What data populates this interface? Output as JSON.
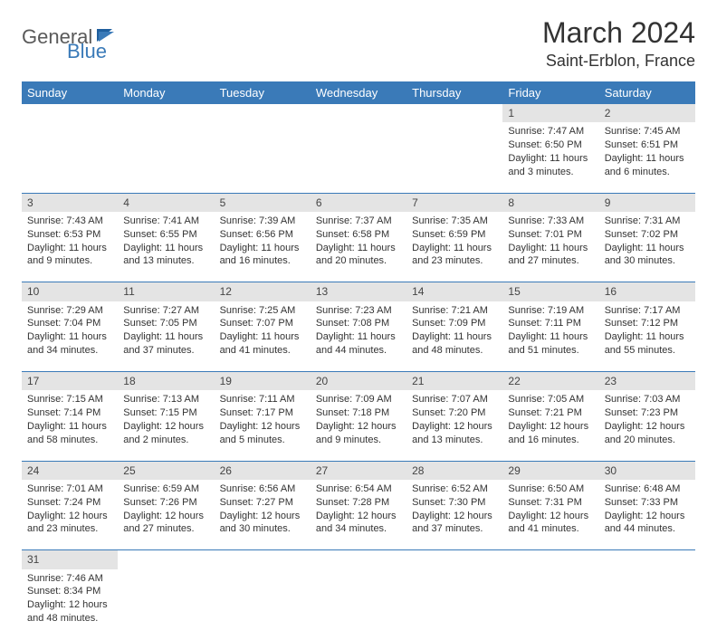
{
  "brand": {
    "part1": "General",
    "part2": "Blue"
  },
  "title": "March 2024",
  "location": "Saint-Erblon, France",
  "colors": {
    "header_bg": "#3a7ab8",
    "header_text": "#ffffff",
    "daynum_bg": "#e4e4e4",
    "row_border": "#3a7ab8",
    "text": "#333333",
    "page_bg": "#ffffff"
  },
  "weekdays": [
    "Sunday",
    "Monday",
    "Tuesday",
    "Wednesday",
    "Thursday",
    "Friday",
    "Saturday"
  ],
  "weeks": [
    [
      null,
      null,
      null,
      null,
      null,
      {
        "n": "1",
        "sr": "Sunrise: 7:47 AM",
        "ss": "Sunset: 6:50 PM",
        "d1": "Daylight: 11 hours",
        "d2": "and 3 minutes."
      },
      {
        "n": "2",
        "sr": "Sunrise: 7:45 AM",
        "ss": "Sunset: 6:51 PM",
        "d1": "Daylight: 11 hours",
        "d2": "and 6 minutes."
      }
    ],
    [
      {
        "n": "3",
        "sr": "Sunrise: 7:43 AM",
        "ss": "Sunset: 6:53 PM",
        "d1": "Daylight: 11 hours",
        "d2": "and 9 minutes."
      },
      {
        "n": "4",
        "sr": "Sunrise: 7:41 AM",
        "ss": "Sunset: 6:55 PM",
        "d1": "Daylight: 11 hours",
        "d2": "and 13 minutes."
      },
      {
        "n": "5",
        "sr": "Sunrise: 7:39 AM",
        "ss": "Sunset: 6:56 PM",
        "d1": "Daylight: 11 hours",
        "d2": "and 16 minutes."
      },
      {
        "n": "6",
        "sr": "Sunrise: 7:37 AM",
        "ss": "Sunset: 6:58 PM",
        "d1": "Daylight: 11 hours",
        "d2": "and 20 minutes."
      },
      {
        "n": "7",
        "sr": "Sunrise: 7:35 AM",
        "ss": "Sunset: 6:59 PM",
        "d1": "Daylight: 11 hours",
        "d2": "and 23 minutes."
      },
      {
        "n": "8",
        "sr": "Sunrise: 7:33 AM",
        "ss": "Sunset: 7:01 PM",
        "d1": "Daylight: 11 hours",
        "d2": "and 27 minutes."
      },
      {
        "n": "9",
        "sr": "Sunrise: 7:31 AM",
        "ss": "Sunset: 7:02 PM",
        "d1": "Daylight: 11 hours",
        "d2": "and 30 minutes."
      }
    ],
    [
      {
        "n": "10",
        "sr": "Sunrise: 7:29 AM",
        "ss": "Sunset: 7:04 PM",
        "d1": "Daylight: 11 hours",
        "d2": "and 34 minutes."
      },
      {
        "n": "11",
        "sr": "Sunrise: 7:27 AM",
        "ss": "Sunset: 7:05 PM",
        "d1": "Daylight: 11 hours",
        "d2": "and 37 minutes."
      },
      {
        "n": "12",
        "sr": "Sunrise: 7:25 AM",
        "ss": "Sunset: 7:07 PM",
        "d1": "Daylight: 11 hours",
        "d2": "and 41 minutes."
      },
      {
        "n": "13",
        "sr": "Sunrise: 7:23 AM",
        "ss": "Sunset: 7:08 PM",
        "d1": "Daylight: 11 hours",
        "d2": "and 44 minutes."
      },
      {
        "n": "14",
        "sr": "Sunrise: 7:21 AM",
        "ss": "Sunset: 7:09 PM",
        "d1": "Daylight: 11 hours",
        "d2": "and 48 minutes."
      },
      {
        "n": "15",
        "sr": "Sunrise: 7:19 AM",
        "ss": "Sunset: 7:11 PM",
        "d1": "Daylight: 11 hours",
        "d2": "and 51 minutes."
      },
      {
        "n": "16",
        "sr": "Sunrise: 7:17 AM",
        "ss": "Sunset: 7:12 PM",
        "d1": "Daylight: 11 hours",
        "d2": "and 55 minutes."
      }
    ],
    [
      {
        "n": "17",
        "sr": "Sunrise: 7:15 AM",
        "ss": "Sunset: 7:14 PM",
        "d1": "Daylight: 11 hours",
        "d2": "and 58 minutes."
      },
      {
        "n": "18",
        "sr": "Sunrise: 7:13 AM",
        "ss": "Sunset: 7:15 PM",
        "d1": "Daylight: 12 hours",
        "d2": "and 2 minutes."
      },
      {
        "n": "19",
        "sr": "Sunrise: 7:11 AM",
        "ss": "Sunset: 7:17 PM",
        "d1": "Daylight: 12 hours",
        "d2": "and 5 minutes."
      },
      {
        "n": "20",
        "sr": "Sunrise: 7:09 AM",
        "ss": "Sunset: 7:18 PM",
        "d1": "Daylight: 12 hours",
        "d2": "and 9 minutes."
      },
      {
        "n": "21",
        "sr": "Sunrise: 7:07 AM",
        "ss": "Sunset: 7:20 PM",
        "d1": "Daylight: 12 hours",
        "d2": "and 13 minutes."
      },
      {
        "n": "22",
        "sr": "Sunrise: 7:05 AM",
        "ss": "Sunset: 7:21 PM",
        "d1": "Daylight: 12 hours",
        "d2": "and 16 minutes."
      },
      {
        "n": "23",
        "sr": "Sunrise: 7:03 AM",
        "ss": "Sunset: 7:23 PM",
        "d1": "Daylight: 12 hours",
        "d2": "and 20 minutes."
      }
    ],
    [
      {
        "n": "24",
        "sr": "Sunrise: 7:01 AM",
        "ss": "Sunset: 7:24 PM",
        "d1": "Daylight: 12 hours",
        "d2": "and 23 minutes."
      },
      {
        "n": "25",
        "sr": "Sunrise: 6:59 AM",
        "ss": "Sunset: 7:26 PM",
        "d1": "Daylight: 12 hours",
        "d2": "and 27 minutes."
      },
      {
        "n": "26",
        "sr": "Sunrise: 6:56 AM",
        "ss": "Sunset: 7:27 PM",
        "d1": "Daylight: 12 hours",
        "d2": "and 30 minutes."
      },
      {
        "n": "27",
        "sr": "Sunrise: 6:54 AM",
        "ss": "Sunset: 7:28 PM",
        "d1": "Daylight: 12 hours",
        "d2": "and 34 minutes."
      },
      {
        "n": "28",
        "sr": "Sunrise: 6:52 AM",
        "ss": "Sunset: 7:30 PM",
        "d1": "Daylight: 12 hours",
        "d2": "and 37 minutes."
      },
      {
        "n": "29",
        "sr": "Sunrise: 6:50 AM",
        "ss": "Sunset: 7:31 PM",
        "d1": "Daylight: 12 hours",
        "d2": "and 41 minutes."
      },
      {
        "n": "30",
        "sr": "Sunrise: 6:48 AM",
        "ss": "Sunset: 7:33 PM",
        "d1": "Daylight: 12 hours",
        "d2": "and 44 minutes."
      }
    ],
    [
      {
        "n": "31",
        "sr": "Sunrise: 7:46 AM",
        "ss": "Sunset: 8:34 PM",
        "d1": "Daylight: 12 hours",
        "d2": "and 48 minutes."
      },
      null,
      null,
      null,
      null,
      null,
      null
    ]
  ]
}
